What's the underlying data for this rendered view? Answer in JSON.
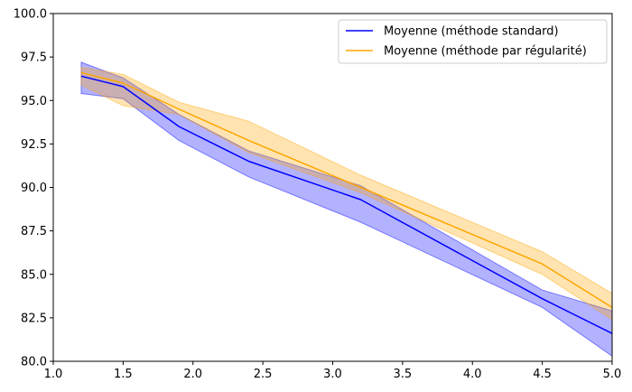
{
  "chart_data": {
    "type": "line",
    "title": "",
    "xlabel": "",
    "ylabel": "",
    "xlim": [
      1.0,
      5.0
    ],
    "ylim": [
      80.0,
      100.0
    ],
    "xticks": [
      1.0,
      1.5,
      2.0,
      2.5,
      3.0,
      3.5,
      4.0,
      4.5,
      5.0
    ],
    "yticks": [
      80.0,
      82.5,
      85.0,
      87.5,
      90.0,
      92.5,
      95.0,
      97.5,
      100.0
    ],
    "xtick_labels": [
      "1.0",
      "1.5",
      "2.0",
      "2.5",
      "3.0",
      "3.5",
      "4.0",
      "4.5",
      "5.0"
    ],
    "ytick_labels": [
      "80.0",
      "82.5",
      "85.0",
      "87.5",
      "90.0",
      "92.5",
      "95.0",
      "97.5",
      "100.0"
    ],
    "grid": false,
    "legend_position": "top-right",
    "x": [
      1.2,
      1.5,
      1.9,
      2.4,
      3.2,
      4.5,
      5.0
    ],
    "series": [
      {
        "name": "Moyenne (méthode standard)",
        "color": "#0000ff",
        "fill_color": "#0000ff",
        "values": [
          96.4,
          95.8,
          93.5,
          91.5,
          89.3,
          83.6,
          81.6
        ],
        "lower": [
          95.4,
          95.1,
          92.7,
          90.6,
          88.0,
          83.1,
          80.3
        ],
        "upper": [
          97.2,
          96.3,
          94.2,
          92.1,
          90.1,
          84.1,
          82.9
        ]
      },
      {
        "name": "Moyenne (méthode par régularité)",
        "color": "#ffa500",
        "fill_color": "#ffa500",
        "values": [
          96.6,
          96.0,
          94.5,
          92.7,
          90.0,
          85.6,
          83.1
        ],
        "lower": [
          95.9,
          94.7,
          94.2,
          92.0,
          89.7,
          85.0,
          82.4
        ],
        "upper": [
          96.9,
          96.5,
          94.9,
          93.8,
          90.7,
          86.3,
          83.9
        ]
      }
    ]
  }
}
